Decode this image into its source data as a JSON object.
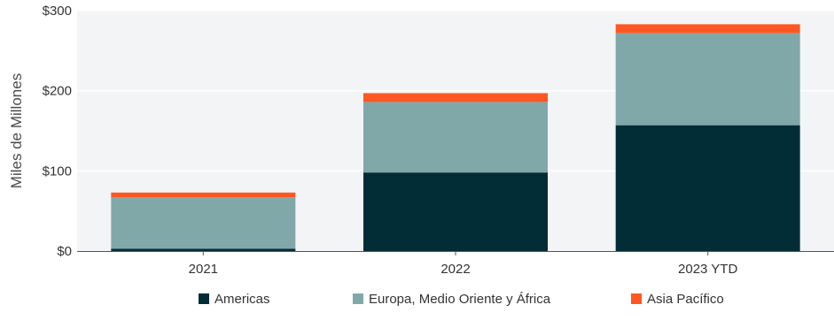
{
  "chart_data": {
    "type": "bar",
    "stacked": true,
    "categories": [
      "2021",
      "2022",
      "2023 YTD"
    ],
    "series": [
      {
        "name": "Americas",
        "values": [
          3,
          98,
          157
        ],
        "color": "#022c36"
      },
      {
        "name": "Europa, Medio Oriente y África",
        "values": [
          64,
          88,
          115
        ],
        "color": "#80a8a8"
      },
      {
        "name": "Asia Pacífico",
        "values": [
          6,
          11,
          11
        ],
        "color": "#ff5722"
      }
    ],
    "ylabel": "Miles de Millones",
    "ylim": [
      0,
      300
    ],
    "yticks": [
      {
        "value": 0,
        "label": "$0"
      },
      {
        "value": 100,
        "label": "$100"
      },
      {
        "value": 200,
        "label": "$200"
      },
      {
        "value": 300,
        "label": "$300"
      }
    ],
    "grid": true,
    "legend_position": "bottom",
    "plot_background": "#f2f4f6",
    "grid_color": "#ffffff"
  }
}
